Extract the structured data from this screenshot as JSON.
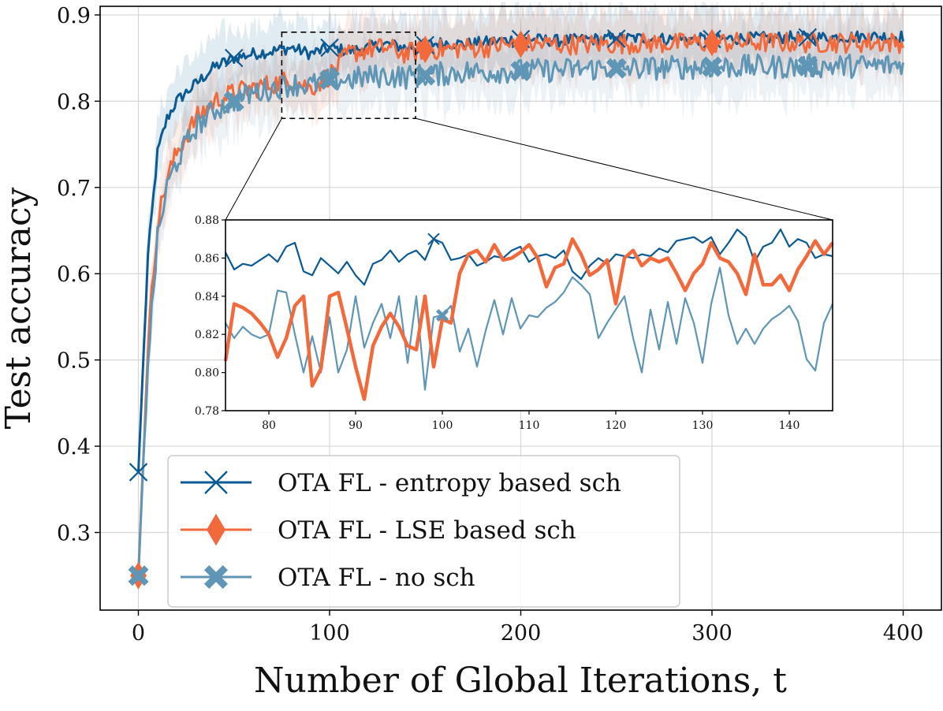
{
  "chart_data": {
    "type": "line",
    "xlabel": "Number of Global Iterations, t",
    "ylabel": "Test accuracy",
    "xlim": [
      -20,
      420
    ],
    "ylim": [
      0.21,
      0.91
    ],
    "xticks": [
      0,
      100,
      200,
      300,
      400
    ],
    "yticks": [
      0.3,
      0.4,
      0.5,
      0.6,
      0.7,
      0.8,
      0.9
    ],
    "grid": true,
    "legend_position": "lower-center",
    "colors": {
      "entropy": "#0b5a94",
      "lse": "#f26a3c",
      "nosch": "#5f95b5"
    },
    "series": [
      {
        "name": "OTA FL - entropy based sch",
        "key": "entropy",
        "marker": "x",
        "x": [
          0,
          5,
          10,
          15,
          20,
          30,
          40,
          50,
          60,
          70,
          80,
          90,
          100,
          110,
          120,
          130,
          140,
          150,
          160,
          170,
          180,
          190,
          200,
          220,
          240,
          260,
          280,
          300,
          320,
          340,
          360,
          380,
          400
        ],
        "values": [
          0.37,
          0.62,
          0.74,
          0.78,
          0.8,
          0.82,
          0.84,
          0.85,
          0.855,
          0.858,
          0.862,
          0.855,
          0.862,
          0.858,
          0.862,
          0.866,
          0.862,
          0.865,
          0.868,
          0.866,
          0.868,
          0.87,
          0.872,
          0.87,
          0.872,
          0.873,
          0.872,
          0.872,
          0.873,
          0.874,
          0.874,
          0.875,
          0.875
        ],
        "markers_at": [
          0,
          50,
          100,
          150,
          200,
          250,
          300,
          350
        ]
      },
      {
        "name": "OTA FL - LSE based sch",
        "key": "lse",
        "marker": "diamond",
        "x": [
          0,
          5,
          10,
          15,
          20,
          30,
          40,
          50,
          60,
          70,
          80,
          90,
          100,
          110,
          120,
          130,
          140,
          150,
          160,
          170,
          180,
          190,
          200,
          220,
          240,
          260,
          280,
          300,
          320,
          340,
          360,
          380,
          400
        ],
        "values": [
          0.25,
          0.52,
          0.66,
          0.71,
          0.74,
          0.78,
          0.8,
          0.81,
          0.815,
          0.82,
          0.825,
          0.815,
          0.83,
          0.855,
          0.86,
          0.862,
          0.855,
          0.86,
          0.86,
          0.862,
          0.862,
          0.865,
          0.866,
          0.866,
          0.866,
          0.867,
          0.867,
          0.868,
          0.868,
          0.868,
          0.868,
          0.868,
          0.868
        ],
        "markers_at": [
          0,
          150,
          200,
          300
        ]
      },
      {
        "name": "OTA FL - no sch",
        "key": "nosch",
        "marker": "X",
        "x": [
          0,
          5,
          10,
          15,
          20,
          30,
          40,
          50,
          60,
          70,
          80,
          90,
          100,
          110,
          120,
          130,
          140,
          150,
          160,
          170,
          180,
          190,
          200,
          220,
          240,
          260,
          280,
          300,
          320,
          340,
          360,
          380,
          400
        ],
        "values": [
          0.25,
          0.5,
          0.64,
          0.7,
          0.73,
          0.77,
          0.79,
          0.8,
          0.81,
          0.815,
          0.82,
          0.818,
          0.825,
          0.825,
          0.828,
          0.83,
          0.828,
          0.83,
          0.832,
          0.834,
          0.834,
          0.835,
          0.835,
          0.836,
          0.838,
          0.838,
          0.839,
          0.84,
          0.84,
          0.84,
          0.841,
          0.841,
          0.842
        ],
        "markers_at": [
          0,
          50,
          100,
          150,
          200,
          250,
          300,
          350
        ]
      }
    ],
    "zoom_box": {
      "x": [
        75,
        145
      ],
      "y": [
        0.78,
        0.88
      ]
    },
    "inset": {
      "xlim": [
        75,
        145
      ],
      "ylim": [
        0.78,
        0.88
      ],
      "xticks": [
        80,
        90,
        100,
        110,
        120,
        130,
        140
      ],
      "yticks": [
        0.78,
        0.8,
        0.82,
        0.84,
        0.86,
        0.88
      ],
      "x": [
        75,
        76,
        77,
        78,
        79,
        80,
        81,
        82,
        83,
        84,
        85,
        86,
        87,
        88,
        89,
        90,
        91,
        92,
        93,
        94,
        95,
        96,
        97,
        98,
        99,
        100,
        101,
        102,
        103,
        104,
        105,
        106,
        107,
        108,
        109,
        110,
        111,
        112,
        113,
        114,
        115,
        116,
        117,
        118,
        119,
        120,
        121,
        122,
        123,
        124,
        125,
        126,
        127,
        128,
        129,
        130,
        131,
        132,
        133,
        134,
        135,
        136,
        137,
        138,
        139,
        140,
        141,
        142,
        143,
        144,
        145
      ],
      "series": [
        {
          "key": "entropy",
          "values": [
            0.863,
            0.854,
            0.857,
            0.856,
            0.859,
            0.862,
            0.858,
            0.866,
            0.868,
            0.853,
            0.851,
            0.86,
            0.856,
            0.852,
            0.858,
            0.851,
            0.846,
            0.857,
            0.859,
            0.864,
            0.858,
            0.862,
            0.864,
            0.859,
            0.87,
            0.868,
            0.859,
            0.86,
            0.862,
            0.856,
            0.858,
            0.861,
            0.86,
            0.864,
            0.866,
            0.858,
            0.861,
            0.862,
            0.86,
            0.864,
            0.853,
            0.849,
            0.856,
            0.86,
            0.857,
            0.862,
            0.861,
            0.86,
            0.862,
            0.861,
            0.865,
            0.863,
            0.869,
            0.87,
            0.871,
            0.868,
            0.871,
            0.862,
            0.868,
            0.875,
            0.871,
            0.858,
            0.866,
            0.868,
            0.875,
            0.866,
            0.87,
            0.868,
            0.86,
            0.862,
            0.861
          ],
          "markers_at": [
            99
          ]
        },
        {
          "key": "lse",
          "values": [
            0.806,
            0.836,
            0.834,
            0.831,
            0.826,
            0.82,
            0.808,
            0.818,
            0.835,
            0.84,
            0.793,
            0.802,
            0.84,
            0.842,
            0.823,
            0.803,
            0.786,
            0.814,
            0.824,
            0.831,
            0.824,
            0.814,
            0.812,
            0.84,
            0.803,
            0.828,
            0.826,
            0.852,
            0.862,
            0.864,
            0.858,
            0.867,
            0.859,
            0.86,
            0.863,
            0.867,
            0.86,
            0.845,
            0.855,
            0.857,
            0.87,
            0.862,
            0.851,
            0.854,
            0.859,
            0.836,
            0.86,
            0.864,
            0.856,
            0.86,
            0.858,
            0.86,
            0.852,
            0.843,
            0.852,
            0.857,
            0.868,
            0.86,
            0.858,
            0.852,
            0.841,
            0.862,
            0.846,
            0.846,
            0.851,
            0.843,
            0.854,
            0.861,
            0.869,
            0.862,
            0.868
          ],
          "markers_at": []
        },
        {
          "key": "nosch",
          "values": [
            0.826,
            0.818,
            0.824,
            0.82,
            0.818,
            0.82,
            0.843,
            0.842,
            0.82,
            0.8,
            0.819,
            0.8,
            0.829,
            0.8,
            0.812,
            0.84,
            0.813,
            0.826,
            0.836,
            0.818,
            0.84,
            0.805,
            0.84,
            0.791,
            0.829,
            0.83,
            0.835,
            0.811,
            0.823,
            0.803,
            0.822,
            0.838,
            0.82,
            0.839,
            0.823,
            0.83,
            0.829,
            0.834,
            0.837,
            0.842,
            0.85,
            0.846,
            0.841,
            0.818,
            0.826,
            0.833,
            0.84,
            0.818,
            0.8,
            0.833,
            0.812,
            0.837,
            0.815,
            0.839,
            0.826,
            0.805,
            0.836,
            0.855,
            0.83,
            0.815,
            0.823,
            0.815,
            0.823,
            0.828,
            0.831,
            0.835,
            0.827,
            0.807,
            0.801,
            0.826,
            0.836
          ],
          "markers_at": [
            100
          ]
        }
      ]
    }
  }
}
